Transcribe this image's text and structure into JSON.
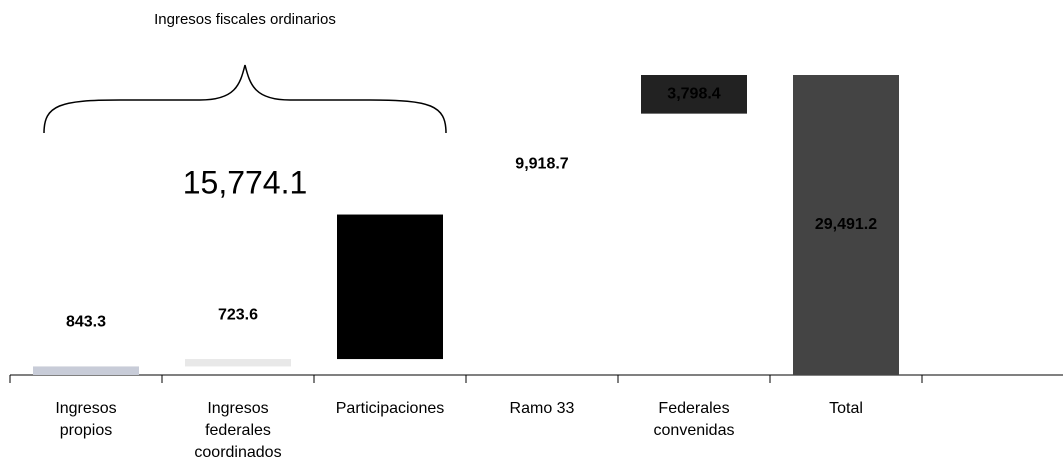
{
  "chart_data": {
    "type": "waterfall",
    "categories": [
      "Ingresos propios",
      "Ingresos federales coordinados",
      "Participaciones",
      "Ramo 33",
      "Federales convenidas",
      "Total"
    ],
    "values": [
      843.3,
      723.6,
      14207.2,
      9918.7,
      3798.4,
      29491.2
    ],
    "value_labels": [
      "843.3",
      "723.6",
      null,
      "9,918.7",
      "3,798.4",
      "29,491.2"
    ],
    "colors": [
      "#c8ccd8",
      "#e8e8e8",
      "#000000",
      "#ffffff",
      "#222222",
      "#444444"
    ],
    "total_index": 5,
    "subtotal": {
      "label": "Ingresos fiscales ordinarios",
      "value": 15774.1,
      "value_label": "15,774.1"
    }
  }
}
